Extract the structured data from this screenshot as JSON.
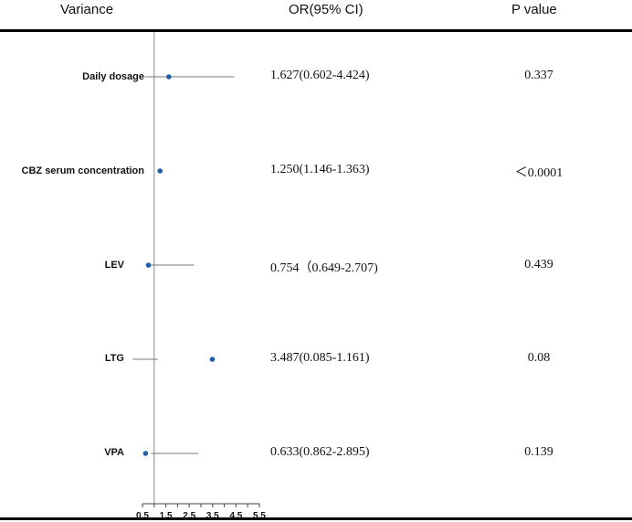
{
  "headers": {
    "variance": "Variance",
    "or": "OR(95% CI)",
    "p": "P value"
  },
  "chart_data": {
    "type": "forest",
    "title": "",
    "xlabel": "",
    "ylabel": "",
    "xlim": [
      0.5,
      5.5
    ],
    "xticks": [
      "0.5",
      "1",
      "1.5",
      "2",
      "2.5",
      "3",
      "3.5",
      "4",
      "4.5",
      "5",
      "5.5"
    ],
    "reference_line": 1,
    "grid": false,
    "rows": [
      {
        "label": "Daily dosage",
        "or_value": 1.627,
        "ci_low": 0.602,
        "ci_high": 4.424,
        "or_text": "1.627(0.602-4.424)",
        "p_text": "0.337"
      },
      {
        "label": "CBZ serum concentration",
        "or_value": 1.25,
        "ci_low": 1.146,
        "ci_high": 1.363,
        "or_text": "1.250(1.146-1.363)",
        "p_text": "＜0.0001"
      },
      {
        "label": "LEV",
        "or_value": 0.754,
        "ci_low": 0.649,
        "ci_high": 2.707,
        "or_text": "0.754（0.649-2.707)",
        "p_text": "0.439"
      },
      {
        "label": "LTG",
        "or_value": 3.487,
        "ci_low": 0.085,
        "ci_high": 1.161,
        "or_text": "3.487(0.085-1.161)",
        "p_text": "0.08"
      },
      {
        "label": "VPA",
        "or_value": 0.633,
        "ci_low": 0.862,
        "ci_high": 2.895,
        "or_text": "0.633(0.862-2.895)",
        "p_text": "0.139"
      }
    ],
    "colors": {
      "point": "#1f5fa8",
      "whisker": "#777777",
      "reference": "#888888"
    }
  }
}
